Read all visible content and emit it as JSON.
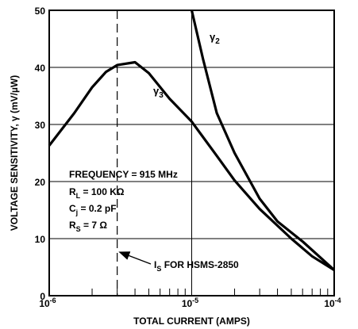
{
  "chart_data": {
    "type": "line",
    "x_scale": "log",
    "xlabel": "TOTAL CURRENT (AMPS)",
    "ylabel": "VOLTAGE SENSITIVITY, γ (mV/µW)",
    "xlim": [
      1e-06,
      0.0001
    ],
    "ylim": [
      0,
      50
    ],
    "grid": true,
    "y_ticks": [
      0,
      10,
      20,
      30,
      40,
      50
    ],
    "x_tick_labels": [
      {
        "x": 1e-06,
        "base": "10",
        "exp": "-6"
      },
      {
        "x": 1e-05,
        "base": "10",
        "exp": "-5"
      },
      {
        "x": 0.0001,
        "base": "10",
        "exp": "-4"
      }
    ],
    "series": [
      {
        "name": "γ3",
        "label_base": "γ",
        "label_sub": "3",
        "color": "#000000",
        "points": [
          [
            1e-06,
            26.3
          ],
          [
            1.5e-06,
            32.0
          ],
          [
            2e-06,
            36.5
          ],
          [
            2.5e-06,
            39.2
          ],
          [
            3e-06,
            40.4
          ],
          [
            4e-06,
            40.9
          ],
          [
            5e-06,
            39.0
          ],
          [
            7e-06,
            34.5
          ],
          [
            1e-05,
            30.5
          ],
          [
            1.5e-05,
            24.5
          ],
          [
            2e-05,
            20.2
          ],
          [
            3e-05,
            15.2
          ],
          [
            5e-05,
            10.0
          ],
          [
            7e-05,
            6.9
          ],
          [
            0.0001,
            4.5
          ]
        ]
      },
      {
        "name": "γ2",
        "label_base": "γ",
        "label_sub": "2",
        "color": "#000000",
        "points": [
          [
            1e-05,
            50.0
          ],
          [
            1.2e-05,
            41.5
          ],
          [
            1.5e-05,
            32.0
          ],
          [
            2e-05,
            25.0
          ],
          [
            3e-05,
            17.0
          ],
          [
            4e-05,
            13.0
          ],
          [
            6e-05,
            9.5
          ],
          [
            0.0001,
            4.5
          ]
        ]
      }
    ],
    "reference_line": {
      "x": 3e-06,
      "style": "dashed",
      "label_base": "I",
      "label_sub": "S",
      "label_rest": " FOR HSMS-2850"
    },
    "annotations": [
      {
        "base": "FREQUENCY = 915 MHz",
        "sub": "",
        "rest": ""
      },
      {
        "base": "R",
        "sub": "L",
        "rest": " = 100 KΩ"
      },
      {
        "base": "C",
        "sub": "j",
        "rest": " = 0.2 pF"
      },
      {
        "base": "R",
        "sub": "S",
        "rest": " = 7 Ω"
      }
    ]
  }
}
